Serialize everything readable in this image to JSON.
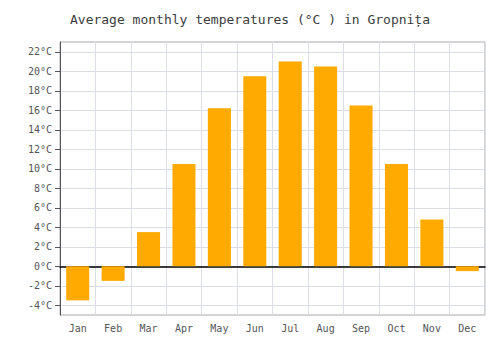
{
  "chart_data": {
    "type": "bar",
    "title": "Average monthly temperatures (°C ) in Gropnița",
    "categories": [
      "Jan",
      "Feb",
      "Mar",
      "Apr",
      "May",
      "Jun",
      "Jul",
      "Aug",
      "Sep",
      "Oct",
      "Nov",
      "Dec"
    ],
    "values": [
      -3.5,
      -1.5,
      3.5,
      10.5,
      16.2,
      19.5,
      21.0,
      20.5,
      16.5,
      10.5,
      4.8,
      -0.5
    ],
    "color": "#FFAA00",
    "ylim": [
      -5,
      23
    ],
    "yticks": [
      {
        "value": -4,
        "label": "-4°C"
      },
      {
        "value": -2,
        "label": "-2°C"
      },
      {
        "value": 0,
        "label": "0°C"
      },
      {
        "value": 2,
        "label": "2°C"
      },
      {
        "value": 4,
        "label": "4°C"
      },
      {
        "value": 6,
        "label": "6°C"
      },
      {
        "value": 8,
        "label": "8°C"
      },
      {
        "value": 10,
        "label": "10°C"
      },
      {
        "value": 12,
        "label": "12°C"
      },
      {
        "value": 14,
        "label": "14°C"
      },
      {
        "value": 16,
        "label": "16°C"
      },
      {
        "value": 18,
        "label": "18°C"
      },
      {
        "value": 20,
        "label": "20°C"
      },
      {
        "value": 22,
        "label": "22°C"
      }
    ],
    "grid": true
  }
}
